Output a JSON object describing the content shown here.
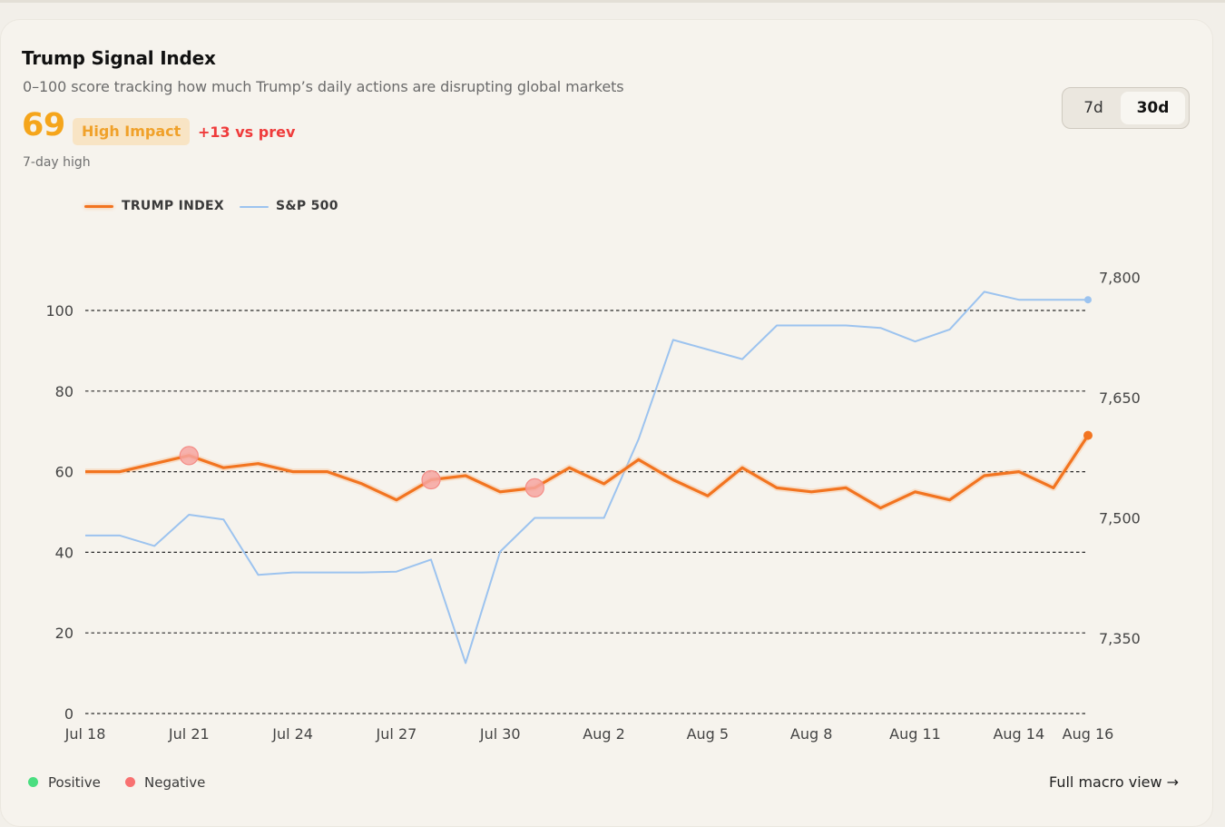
{
  "header": {
    "title": "Trump Signal Index",
    "subtitle": "0–100 score tracking how much Trump’s daily actions are disrupting global markets",
    "score": "69",
    "badge": "High Impact",
    "delta": "+13 vs prev",
    "note": "7-day high"
  },
  "range_toggle": {
    "options": [
      "7d",
      "30d"
    ],
    "selected": "30d"
  },
  "legend_markers": {
    "positive": "Positive",
    "negative": "Negative"
  },
  "footer": {
    "link": "Full macro view →"
  },
  "colors": {
    "trump": "#f27420",
    "sp500": "#9cc3ef",
    "negative": "#f87171",
    "positive": "#4ade80",
    "badge_bg": "#f8e4c4",
    "score": "#f5a51b"
  },
  "chart_data": {
    "type": "line",
    "x": [
      "Jul 18",
      "Jul 19",
      "Jul 20",
      "Jul 21",
      "Jul 22",
      "Jul 23",
      "Jul 24",
      "Jul 25",
      "Jul 26",
      "Jul 27",
      "Jul 28",
      "Jul 29",
      "Jul 30",
      "Jul 31",
      "Aug 1",
      "Aug 2",
      "Aug 3",
      "Aug 4",
      "Aug 5",
      "Aug 6",
      "Aug 7",
      "Aug 8",
      "Aug 9",
      "Aug 10",
      "Aug 11",
      "Aug 12",
      "Aug 13",
      "Aug 14",
      "Aug 15",
      "Aug 16"
    ],
    "x_tick_labels": [
      "Jul 18",
      "Jul 21",
      "Jul 24",
      "Jul 27",
      "Jul 30",
      "Aug 2",
      "Aug 5",
      "Aug 8",
      "Aug 11",
      "Aug 14",
      "Aug 16"
    ],
    "series": [
      {
        "name": "TRUMP INDEX",
        "axis": "left",
        "values": [
          60,
          60,
          62,
          64,
          61,
          62,
          60,
          60,
          57,
          53,
          58,
          59,
          55,
          56,
          61,
          57,
          63,
          58,
          54,
          61,
          56,
          55,
          56,
          51,
          55,
          53,
          59,
          60,
          56,
          69
        ]
      },
      {
        "name": "S&P 500",
        "axis": "right",
        "values": [
          7478,
          7478,
          7465,
          7504,
          7498,
          7429,
          7432,
          7432,
          7432,
          7433,
          7448,
          7319,
          7458,
          7500,
          7500,
          7500,
          7598,
          7722,
          7710,
          7698,
          7740,
          7740,
          7740,
          7737,
          7720,
          7735,
          7782,
          7772,
          7772,
          7772
        ]
      }
    ],
    "negative_markers": [
      {
        "x": "Jul 21",
        "value": 64
      },
      {
        "x": "Jul 28",
        "value": 58
      },
      {
        "x": "Jul 31",
        "value": 56
      }
    ],
    "y_left": {
      "ticks": [
        0,
        20,
        40,
        60,
        80,
        100
      ],
      "ylim": [
        0,
        100
      ]
    },
    "y_right": {
      "ticks": [
        7350,
        7500,
        7650,
        7800
      ],
      "tick_labels": [
        "7,350",
        "7,500",
        "7,650",
        "7,800"
      ]
    },
    "grid": "horizontal dashed at left-axis ticks",
    "legend": "top-left"
  }
}
